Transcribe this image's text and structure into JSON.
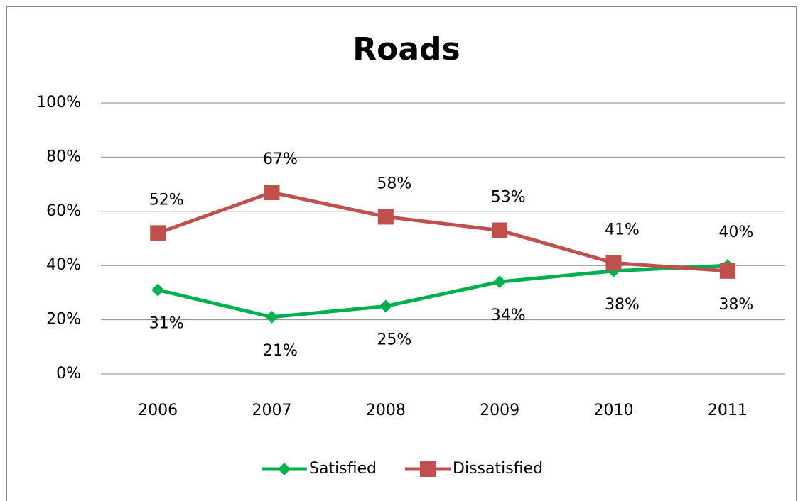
{
  "chart_data": {
    "type": "line",
    "title": "Roads",
    "categories": [
      "2006",
      "2007",
      "2008",
      "2009",
      "2010",
      "2011"
    ],
    "series": [
      {
        "name": "Satisfied",
        "color": "#00b050",
        "marker": "diamond",
        "values": [
          31,
          21,
          25,
          34,
          38,
          40
        ],
        "value_labels": [
          "31%",
          "21%",
          "25%",
          "34%",
          "38%",
          "40%"
        ]
      },
      {
        "name": "Dissatisfied",
        "color": "#c0504d",
        "marker": "square",
        "values": [
          52,
          67,
          58,
          53,
          41,
          38
        ],
        "value_labels": [
          "52%",
          "67%",
          "58%",
          "53%",
          "41%",
          "38%"
        ]
      }
    ],
    "ylim": [
      0,
      100
    ],
    "yticks": [
      {
        "value": 0,
        "label": "0%"
      },
      {
        "value": 20,
        "label": "20%"
      },
      {
        "value": 40,
        "label": "40%"
      },
      {
        "value": 60,
        "label": "60%"
      },
      {
        "value": 80,
        "label": "80%"
      },
      {
        "value": 100,
        "label": "100%"
      }
    ],
    "grid": true,
    "legend": "bottom"
  }
}
